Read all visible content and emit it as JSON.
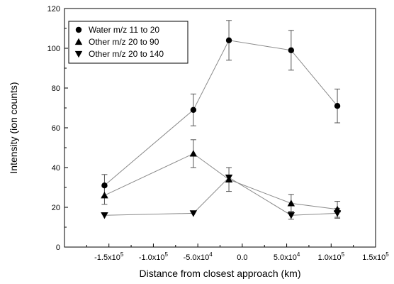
{
  "chart_data": {
    "type": "scatter",
    "title": "",
    "xlabel": "Distance from closest approach (km)",
    "ylabel": "Intensity (ion counts)",
    "xlim": [
      -200000,
      150000
    ],
    "ylim": [
      0,
      120
    ],
    "x_ticks": [
      {
        "value": -150000,
        "label": "-1.5x10",
        "exp": "5"
      },
      {
        "value": -100000,
        "label": "-1.0x10",
        "exp": "5"
      },
      {
        "value": -50000,
        "label": "-5.0x10",
        "exp": "4"
      },
      {
        "value": 0,
        "label": "0.0",
        "exp": ""
      },
      {
        "value": 50000,
        "label": "5.0x10",
        "exp": "4"
      },
      {
        "value": 100000,
        "label": "1.0x10",
        "exp": "5"
      },
      {
        "value": 150000,
        "label": "1.5x10",
        "exp": "5"
      }
    ],
    "y_ticks": [
      {
        "value": 0,
        "label": "0"
      },
      {
        "value": 20,
        "label": "20"
      },
      {
        "value": 40,
        "label": "40"
      },
      {
        "value": 60,
        "label": "60"
      },
      {
        "value": 80,
        "label": "80"
      },
      {
        "value": 100,
        "label": "100"
      },
      {
        "value": 120,
        "label": "120"
      }
    ],
    "grid": false,
    "legend_position": "top-left",
    "series": [
      {
        "name": "Water m/z 11 to 20",
        "marker": "circle",
        "color": "#000000",
        "line_color": "#8a8a8a",
        "x": [
          -155000,
          -55000,
          -15000,
          55000,
          107000
        ],
        "y": [
          31,
          69,
          104,
          99,
          71
        ],
        "err": [
          5.5,
          8,
          10,
          10,
          8.5
        ]
      },
      {
        "name": "Other m/z 20 to 90",
        "marker": "triangle-up",
        "color": "#000000",
        "line_color": "#8a8a8a",
        "x": [
          -155000,
          -55000,
          -15000,
          55000,
          107000
        ],
        "y": [
          26,
          47,
          34,
          22,
          19
        ],
        "err": [
          4.5,
          7,
          6,
          4.5,
          4
        ]
      },
      {
        "name": "Other m/z 20 to 140",
        "marker": "triangle-down",
        "color": "#000000",
        "line_color": "#8a8a8a",
        "x": [
          -155000,
          -55000,
          -15000,
          55000,
          107000
        ],
        "y": [
          16,
          17,
          35,
          16,
          17
        ],
        "err": [
          0,
          0,
          0,
          2,
          2.5
        ]
      }
    ]
  }
}
